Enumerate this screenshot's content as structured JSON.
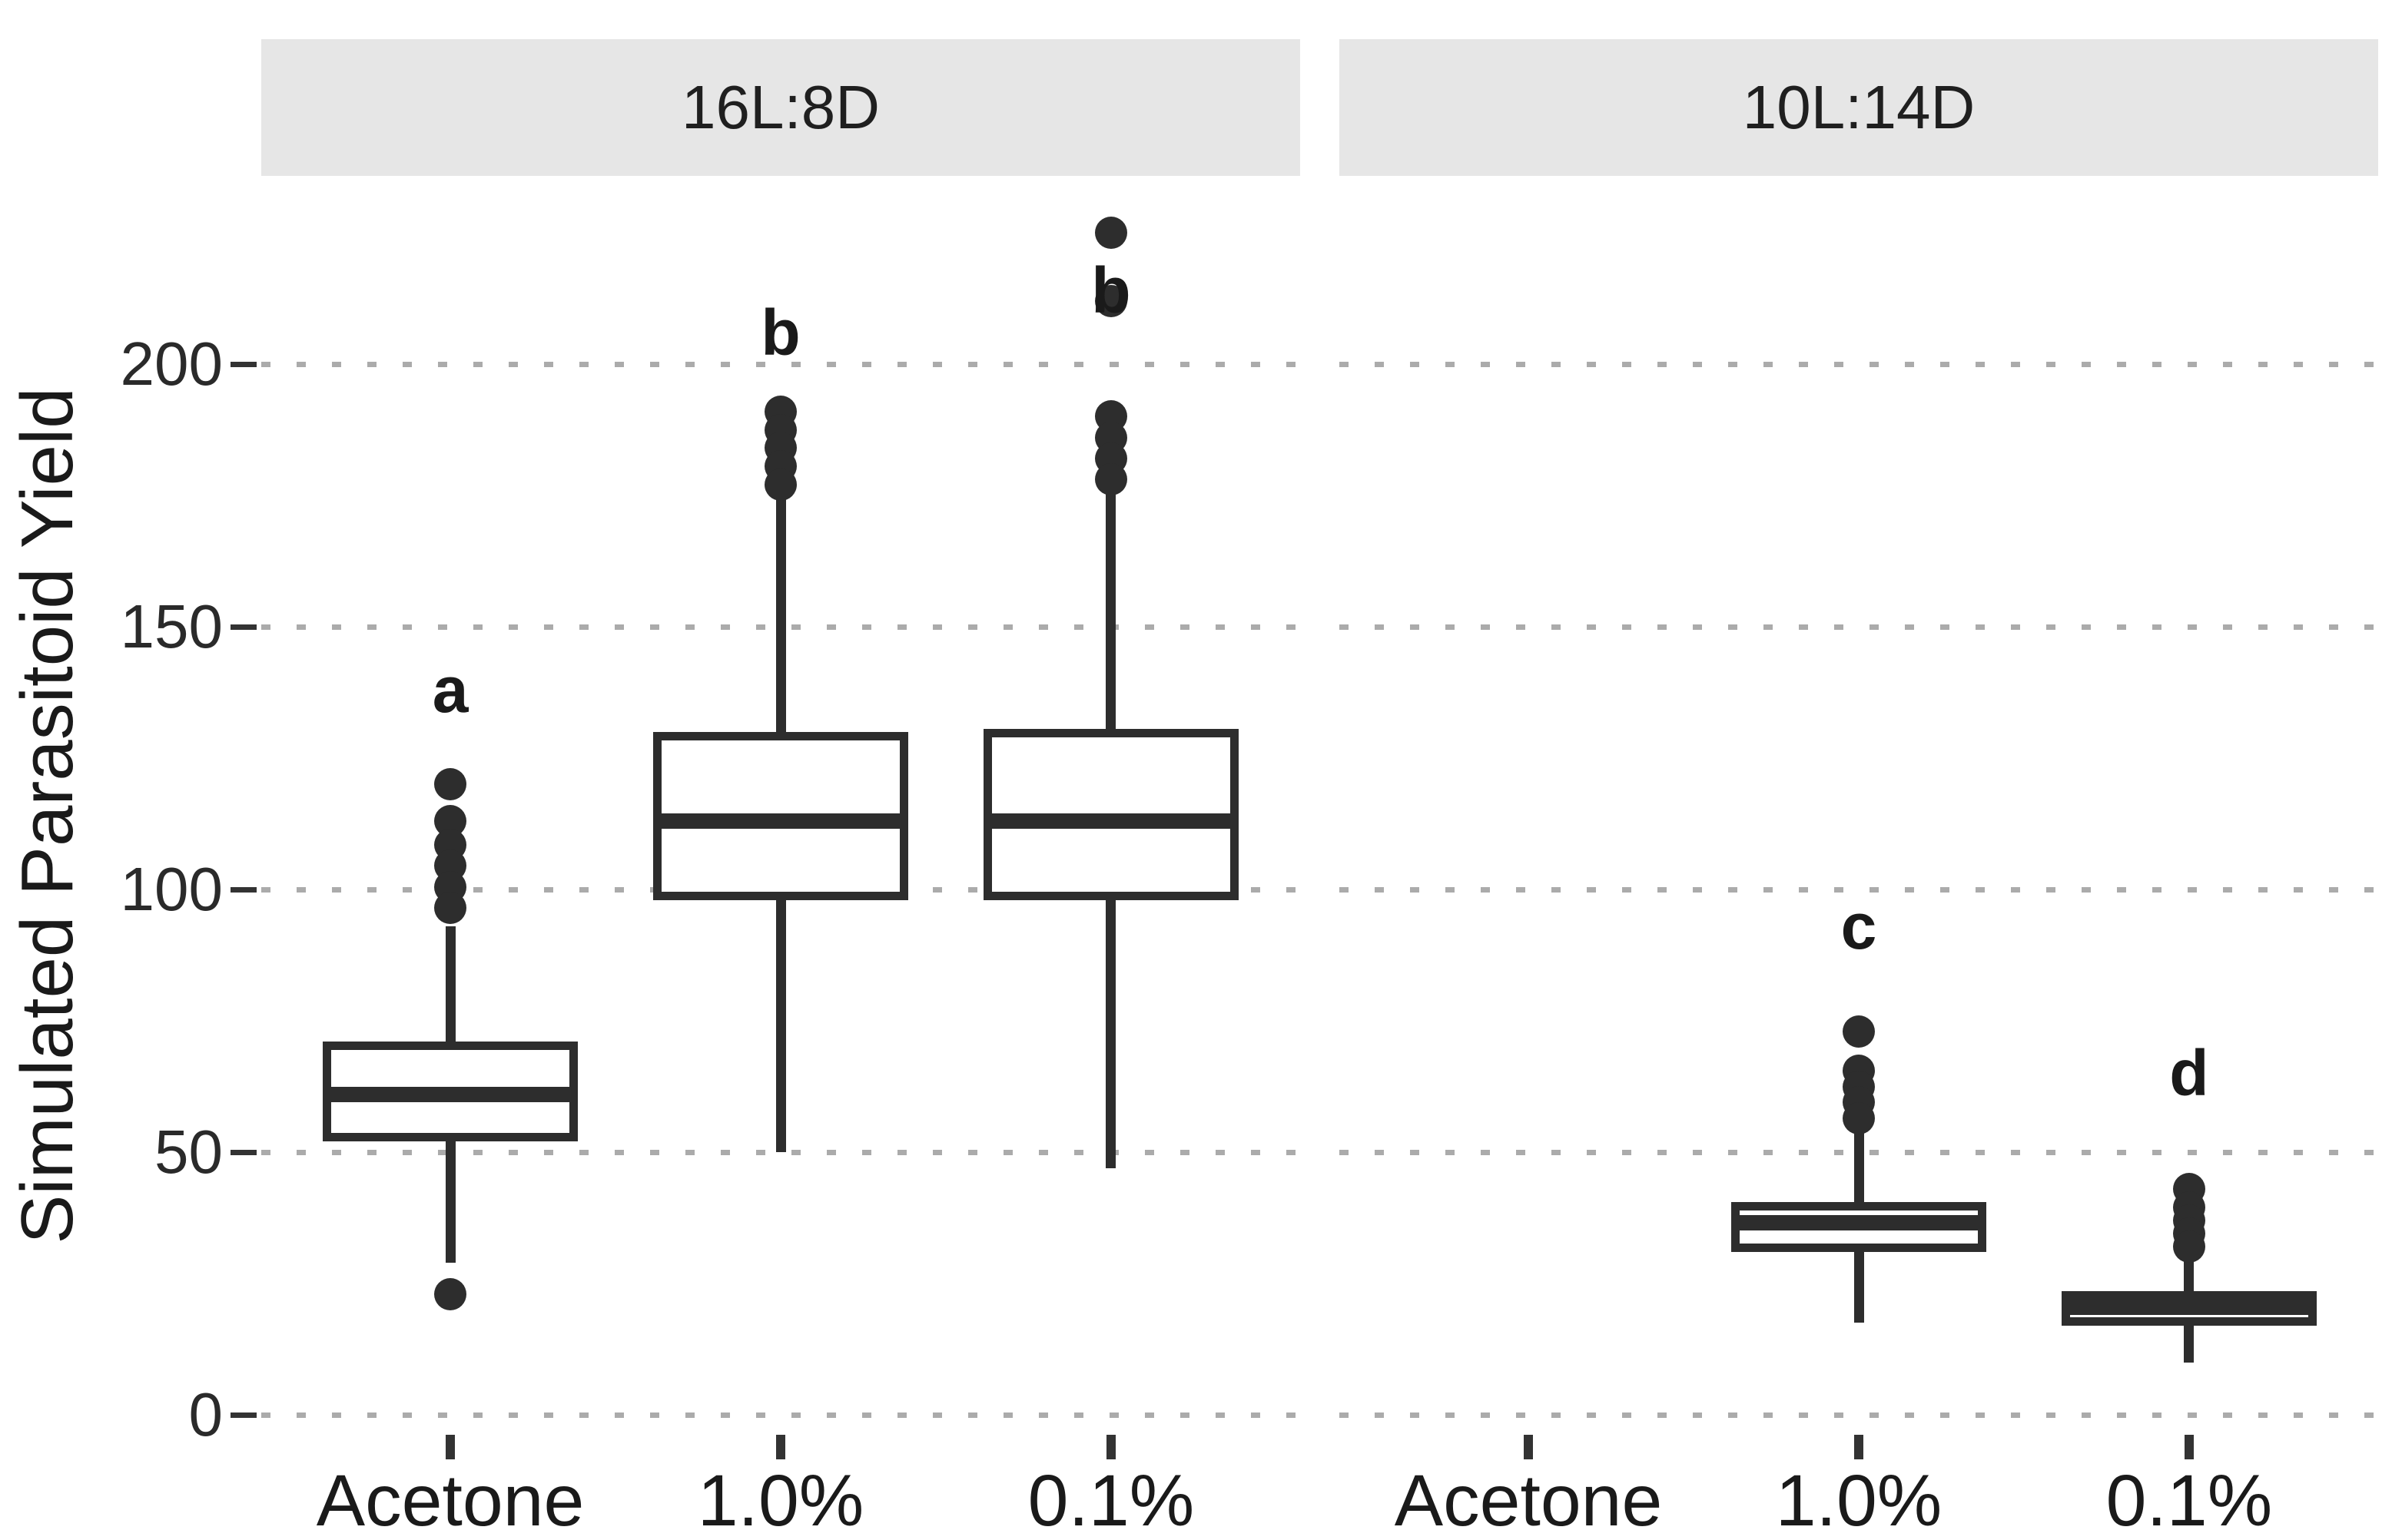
{
  "figure": {
    "background": "#ffffff"
  },
  "colors": {
    "ink": "#2d2d2d",
    "box_fill": "#ffffff",
    "gridline": "#ababab",
    "strip_background": "#e6e6e6",
    "text": "#1a1a1a",
    "tick": "#333333"
  },
  "y_axis": {
    "title": "Simulated Parasitoid Yield",
    "tick_values": [
      0,
      50,
      100,
      150,
      200
    ],
    "tick_labels": [
      "0",
      "50",
      "100",
      "150",
      "200"
    ]
  },
  "chart_data": {
    "type": "boxplot",
    "title": "",
    "xlabel": "",
    "ylabel": "Simulated Parasitoid Yield",
    "ylim": [
      -6,
      236
    ],
    "yticks": [
      0,
      50,
      100,
      150,
      200
    ],
    "grid": "dotted horizontal major gridlines",
    "legend": "none",
    "facets": [
      {
        "label": "16L:8D",
        "categories": [
          "Acetone",
          "1.0%",
          "0.1%"
        ],
        "boxes": [
          {
            "category": "Acetone",
            "sig_letter": "a",
            "letter_value": 138,
            "whisker_low": 29,
            "q1": 52,
            "median": 61,
            "q3": 71,
            "whisker_high": 93,
            "outliers_high": [
              120,
              113,
              108.5,
              104.5,
              100.5,
              96.5
            ],
            "outliers_low": [
              23
            ]
          },
          {
            "category": "1.0%",
            "sig_letter": "b",
            "letter_value": 206,
            "whisker_low": 50,
            "q1": 98,
            "median": 113,
            "q3": 130,
            "whisker_high": 176,
            "outliers_high": [
              191,
              187.5,
              184,
              180.5,
              177
            ],
            "outliers_low": []
          },
          {
            "category": "0.1%",
            "sig_letter": "b",
            "letter_value": 214,
            "whisker_low": 47,
            "q1": 98,
            "median": 113,
            "q3": 130.5,
            "whisker_high": 176,
            "outliers_high": [
              225,
              212,
              190,
              186,
              182,
              178
            ],
            "outliers_low": []
          }
        ]
      },
      {
        "label": "10L:14D",
        "categories": [
          "Acetone",
          "1.0%",
          "0.1%"
        ],
        "boxes": [
          {
            "category": "Acetone",
            "empty": true
          },
          {
            "category": "1.0%",
            "sig_letter": "c",
            "letter_value": 93,
            "whisker_low": 17.5,
            "q1": 31,
            "median": 36.5,
            "q3": 40.5,
            "whisker_high": 54,
            "outliers_high": [
              73,
              65.5,
              62.5,
              59.5,
              56.5
            ],
            "outliers_low": []
          },
          {
            "category": "0.1%",
            "sig_letter": "d",
            "letter_value": 65,
            "whisker_low": 10,
            "q1": 17,
            "median": 20.5,
            "q3": 23.5,
            "whisker_high": 31.5,
            "outliers_high": [
              43,
              39.5,
              37,
              34.5,
              32
            ],
            "outliers_low": []
          }
        ]
      }
    ]
  }
}
